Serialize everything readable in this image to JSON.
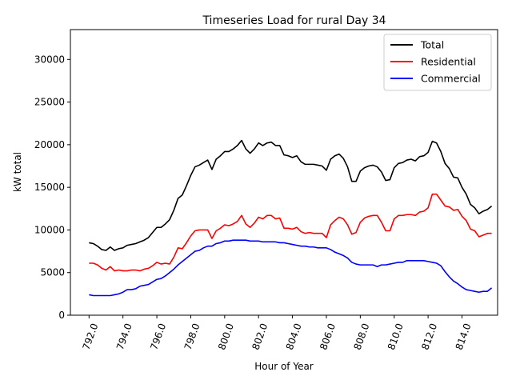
{
  "chart_data": {
    "type": "line",
    "title": "Timeseries Load for rural   Day 34",
    "xlabel": "Hour of Year",
    "ylabel": "kW total",
    "xlim": [
      790.9,
      816.1
    ],
    "ylim": [
      0,
      33500
    ],
    "xticks": [
      792.0,
      794.0,
      796.0,
      798.0,
      800.0,
      802.0,
      804.0,
      806.0,
      808.0,
      810.0,
      812.0,
      814.0
    ],
    "xtick_labels": [
      "792.0",
      "794.0",
      "796.0",
      "798.0",
      "800.0",
      "802.0",
      "804.0",
      "806.0",
      "808.0",
      "810.0",
      "812.0",
      "814.0"
    ],
    "yticks": [
      0,
      5000,
      10000,
      15000,
      20000,
      25000,
      30000
    ],
    "ytick_labels": [
      "0",
      "5000",
      "10000",
      "15000",
      "20000",
      "25000",
      "30000"
    ],
    "legend_position": "upper right",
    "x_start": 792.0,
    "x_step": 0.25,
    "series": [
      {
        "name": "Total",
        "color": "#000000",
        "values": [
          8500,
          8400,
          8100,
          7700,
          7600,
          8000,
          7600,
          7800,
          7900,
          8200,
          8300,
          8400,
          8600,
          8800,
          9100,
          9700,
          10300,
          10300,
          10700,
          11200,
          12300,
          13700,
          14100,
          15200,
          16400,
          17400,
          17600,
          17900,
          18200,
          17100,
          18300,
          18700,
          19200,
          19200,
          19500,
          19900,
          20500,
          19500,
          19000,
          19500,
          20200,
          19900,
          20200,
          20300,
          19900,
          19900,
          18800,
          18700,
          18500,
          18700,
          18000,
          17700,
          17700,
          17700,
          17600,
          17500,
          17000,
          18300,
          18700,
          18900,
          18400,
          17400,
          15700,
          15700,
          16900,
          17300,
          17500,
          17600,
          17400,
          16800,
          15800,
          15900,
          17300,
          17800,
          17900,
          18200,
          18300,
          18100,
          18600,
          18700,
          19100,
          20400,
          20200,
          19200,
          17800,
          17200,
          16200,
          16100,
          15000,
          14200,
          13000,
          12600,
          11900,
          12200,
          12400,
          12800
        ]
      },
      {
        "name": "Residential",
        "color": "#ff0000",
        "values": [
          6100,
          6100,
          5900,
          5500,
          5300,
          5700,
          5200,
          5300,
          5200,
          5200,
          5300,
          5300,
          5200,
          5400,
          5500,
          5800,
          6200,
          6000,
          6100,
          6000,
          6800,
          7900,
          7800,
          8500,
          9300,
          9900,
          10000,
          10000,
          10000,
          9000,
          9900,
          10200,
          10600,
          10500,
          10700,
          11000,
          11700,
          10700,
          10300,
          10800,
          11500,
          11300,
          11700,
          11700,
          11300,
          11400,
          10200,
          10200,
          10100,
          10300,
          9800,
          9600,
          9700,
          9600,
          9600,
          9600,
          9100,
          10600,
          11100,
          11500,
          11300,
          10600,
          9500,
          9700,
          10900,
          11400,
          11600,
          11700,
          11700,
          10900,
          9900,
          9900,
          11300,
          11700,
          11700,
          11800,
          11800,
          11700,
          12100,
          12200,
          12600,
          14200,
          14200,
          13500,
          12800,
          12700,
          12300,
          12400,
          11600,
          11100,
          10100,
          9900,
          9200,
          9400,
          9600,
          9600
        ]
      },
      {
        "name": "Commercial",
        "color": "#0000ff",
        "values": [
          2400,
          2300,
          2300,
          2300,
          2300,
          2300,
          2400,
          2500,
          2700,
          3000,
          3000,
          3100,
          3400,
          3500,
          3600,
          3900,
          4200,
          4300,
          4600,
          5000,
          5400,
          5900,
          6300,
          6700,
          7100,
          7500,
          7600,
          7900,
          8100,
          8100,
          8400,
          8500,
          8700,
          8700,
          8800,
          8800,
          8800,
          8800,
          8700,
          8700,
          8700,
          8600,
          8600,
          8600,
          8600,
          8500,
          8500,
          8400,
          8300,
          8200,
          8100,
          8100,
          8000,
          8000,
          7900,
          7900,
          7900,
          7700,
          7400,
          7200,
          7000,
          6700,
          6200,
          6000,
          5900,
          5900,
          5900,
          5900,
          5700,
          5900,
          5900,
          6000,
          6100,
          6200,
          6200,
          6400,
          6400,
          6400,
          6400,
          6400,
          6300,
          6200,
          6100,
          5800,
          5100,
          4500,
          4000,
          3700,
          3300,
          3000,
          2900,
          2800,
          2700,
          2800,
          2800,
          3200
        ]
      }
    ]
  }
}
